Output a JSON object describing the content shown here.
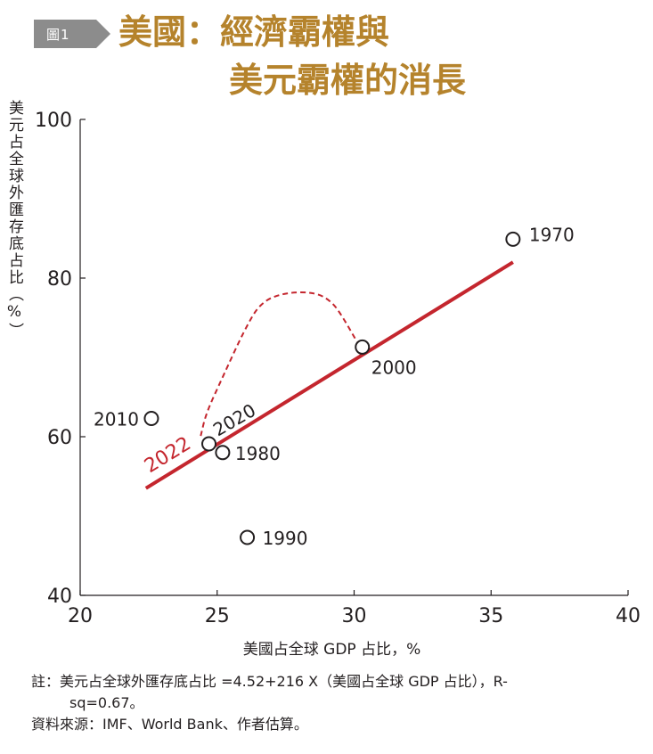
{
  "header": {
    "badge": "圖1",
    "title_line1": "美國：經濟霸權與",
    "title_line2": "美元霸權的消長",
    "badge_color": "#8c8c8c",
    "title_color": "#b5832c"
  },
  "chart_data": {
    "type": "scatter",
    "xlabel": "美國占全球 GDP 占比，%",
    "ylabel": "美元占全球外匯存底占比（%）",
    "xlim": [
      20,
      40
    ],
    "ylim": [
      40,
      100
    ],
    "x_ticks": [
      "20",
      "25",
      "30",
      "35",
      "40"
    ],
    "y_ticks": [
      "40",
      "60",
      "80",
      "100"
    ],
    "points": [
      {
        "label": "1970",
        "x": 35.8,
        "y": 84.9
      },
      {
        "label": "1980",
        "x": 25.2,
        "y": 58.0
      },
      {
        "label": "1990",
        "x": 26.1,
        "y": 47.3
      },
      {
        "label": "2000",
        "x": 30.3,
        "y": 71.3
      },
      {
        "label": "2010",
        "x": 22.6,
        "y": 62.3
      },
      {
        "label": "2020",
        "x": 24.7,
        "y": 59.1
      }
    ],
    "trend_line": {
      "x": [
        22.4,
        35.8
      ],
      "y": [
        53.5,
        82.0
      ],
      "color": "#c4262e"
    },
    "dashed_path": {
      "x": [
        24.4,
        24.6,
        25.2,
        26.0,
        26.6,
        27.5,
        28.6,
        29.2,
        29.6,
        30.1
      ],
      "y": [
        60.1,
        63.0,
        67.5,
        73.5,
        77.0,
        78.2,
        78.2,
        77.0,
        75.0,
        72.0
      ],
      "color": "#c4262e"
    },
    "annotation": {
      "text": "2022",
      "color": "#c4262e"
    },
    "grid": false,
    "point_color": "#231f20"
  },
  "notes": {
    "line1": "註：美元占全球外匯存底占比 =4.52+216 X（美國占全球 GDP 占比），R-",
    "line2": "sq=0.67。",
    "source": "資料來源：IMF、World Bank、作者估算。"
  }
}
